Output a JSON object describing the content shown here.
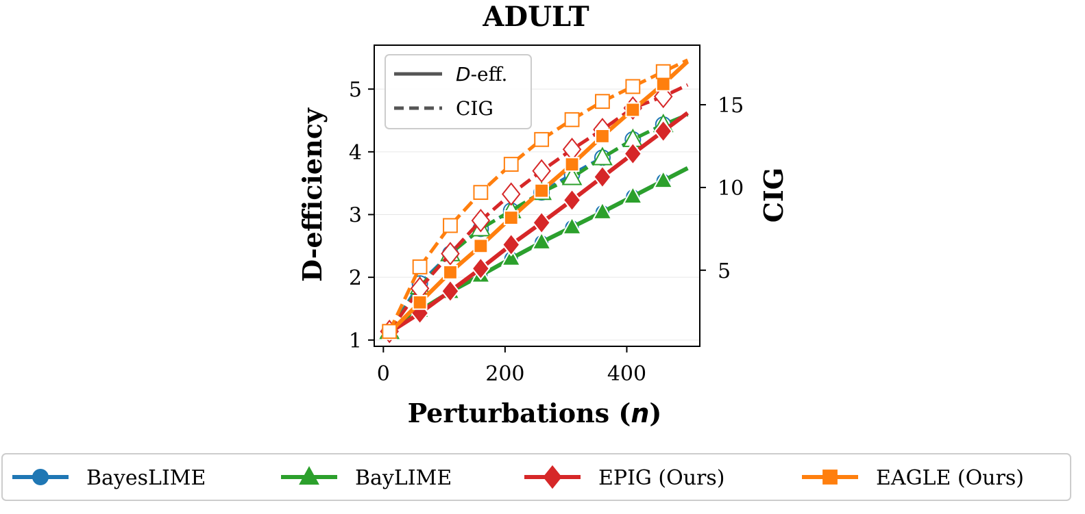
{
  "chart_data": {
    "type": "line",
    "title": "ADULT",
    "xlabel": "Perturbations (n)",
    "ylabel_left": "D-efficiency",
    "ylabel_right": "CIG",
    "xlim": [
      -15,
      520
    ],
    "ylim_left": [
      0.9,
      5.7
    ],
    "ylim_right": [
      0.4,
      18.6
    ],
    "x_ticks": [
      0,
      200,
      400
    ],
    "y_ticks_left": [
      1,
      2,
      3,
      4,
      5
    ],
    "y_ticks_right": [
      5,
      10,
      15
    ],
    "grid": "horizontal",
    "inner_legend": {
      "placement": "top-left",
      "entries": [
        {
          "style": "solid",
          "label_italic": "D",
          "label_rest": "-eff."
        },
        {
          "style": "dashed",
          "label": "CIG"
        }
      ]
    },
    "x": [
      10,
      60,
      110,
      160,
      210,
      260,
      310,
      360,
      410,
      460
    ],
    "line_x_end": 500,
    "series": [
      {
        "name": "BayesLIME",
        "color": "#1f77b4",
        "marker": "circle",
        "deff": [
          1.12,
          1.47,
          1.77,
          2.03,
          2.3,
          2.56,
          2.8,
          3.04,
          3.29,
          3.54
        ],
        "deff_end": 3.74,
        "cig": [
          1.3,
          4.2,
          6.0,
          7.5,
          8.6,
          9.7,
          10.8,
          11.8,
          12.9,
          13.8
        ],
        "cig_end": 14.4
      },
      {
        "name": "BayLIME",
        "color": "#2ca02c",
        "marker": "triangle",
        "deff": [
          1.12,
          1.47,
          1.77,
          2.03,
          2.3,
          2.56,
          2.8,
          3.04,
          3.29,
          3.54
        ],
        "deff_end": 3.74,
        "cig": [
          1.3,
          4.0,
          6.0,
          7.5,
          8.6,
          9.7,
          10.6,
          11.8,
          12.9,
          13.8
        ],
        "cig_end": 14.4
      },
      {
        "name": "EPIG (Ours)",
        "color": "#d62728",
        "marker": "diamond",
        "deff": [
          1.12,
          1.43,
          1.78,
          2.14,
          2.52,
          2.87,
          3.23,
          3.6,
          3.97,
          4.33
        ],
        "deff_end": 4.62,
        "cig": [
          1.3,
          3.9,
          6.0,
          8.0,
          9.6,
          11.0,
          12.3,
          13.5,
          14.8,
          15.5
        ],
        "cig_end": 16.2
      },
      {
        "name": "EAGLE (Ours)",
        "color": "#ff7f0e",
        "marker": "square",
        "deff": [
          1.12,
          1.6,
          2.08,
          2.5,
          2.95,
          3.38,
          3.8,
          4.25,
          4.67,
          5.08
        ],
        "deff_end": 5.44,
        "cig": [
          1.3,
          5.2,
          7.7,
          9.7,
          11.4,
          12.9,
          14.1,
          15.2,
          16.1,
          17.0
        ],
        "cig_end": 17.7
      }
    ]
  }
}
